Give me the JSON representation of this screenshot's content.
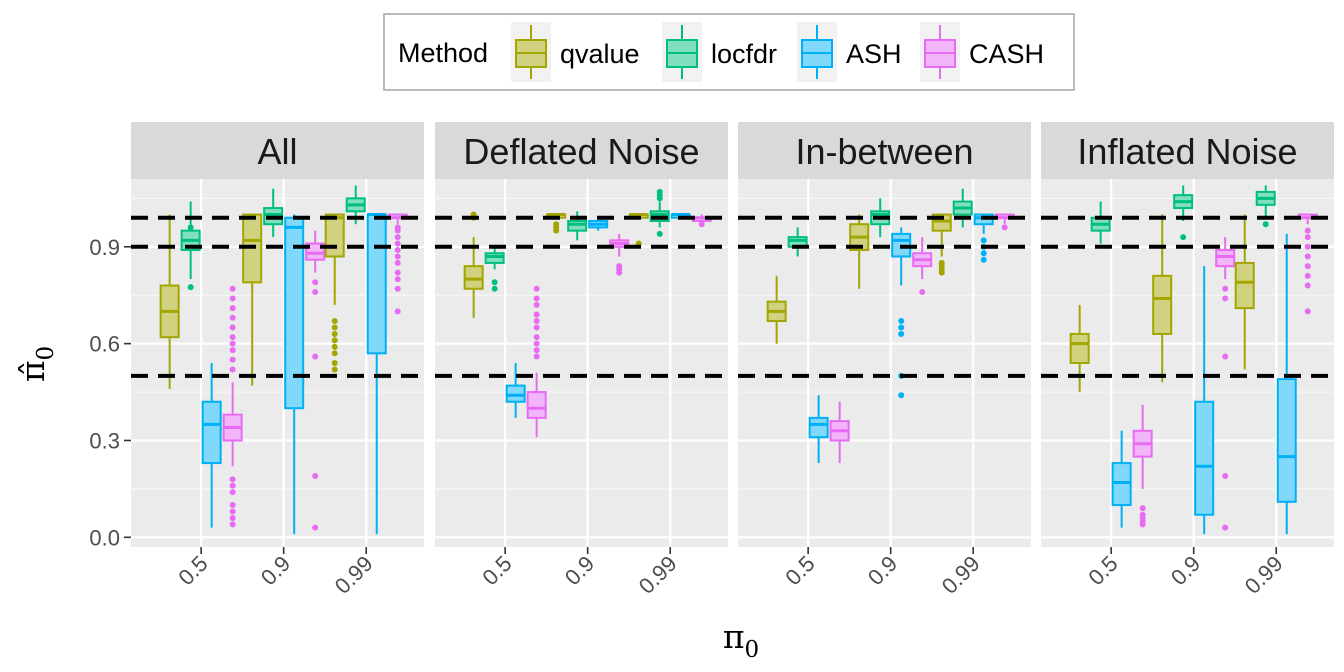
{
  "chart_data": {
    "type": "boxplot",
    "xlabel": "π0",
    "ylabel": "π̂0",
    "ylim": [
      -0.03,
      1.11
    ],
    "y_ticks": [
      "0.0",
      "0.3",
      "0.6",
      "0.9"
    ],
    "y_tick_values": [
      0.0,
      0.3,
      0.6,
      0.9
    ],
    "categories": [
      "0.5",
      "0.9",
      "0.99"
    ],
    "reference_lines": [
      0.5,
      0.9,
      0.99
    ],
    "legend": {
      "title": "Method",
      "position": "top"
    },
    "series": [
      {
        "name": "qvalue",
        "color": "#A3A500",
        "fill": "#D1D280"
      },
      {
        "name": "locfdr",
        "color": "#00BF7D",
        "fill": "#80DFBE"
      },
      {
        "name": "ASH",
        "color": "#00B0F6",
        "fill": "#80D8FB"
      },
      {
        "name": "CASH",
        "color": "#E76BF3",
        "fill": "#F3B5F9"
      }
    ],
    "panels": [
      {
        "title": "All",
        "boxes": [
          [
            {
              "q1": 0.62,
              "med": 0.7,
              "q3": 0.78,
              "lo": 0.46,
              "hi": 1.0,
              "out": []
            },
            {
              "q1": 0.89,
              "med": 0.92,
              "q3": 0.95,
              "lo": 0.8,
              "hi": 1.04,
              "out": [
                0.775,
                0.96
              ]
            },
            {
              "q1": 0.23,
              "med": 0.35,
              "q3": 0.42,
              "lo": 0.03,
              "hi": 0.54,
              "out": []
            },
            {
              "q1": 0.3,
              "med": 0.34,
              "q3": 0.38,
              "lo": 0.22,
              "hi": 0.48,
              "out": [
                0.04,
                0.06,
                0.08,
                0.1,
                0.14,
                0.16,
                0.18,
                0.52,
                0.55,
                0.58,
                0.6,
                0.62,
                0.65,
                0.68,
                0.71,
                0.74,
                0.77
              ]
            }
          ],
          [
            {
              "q1": 0.79,
              "med": 0.92,
              "q3": 1.0,
              "lo": 0.47,
              "hi": 1.0,
              "out": []
            },
            {
              "q1": 0.97,
              "med": 1.0,
              "q3": 1.02,
              "lo": 0.93,
              "hi": 1.08,
              "out": []
            },
            {
              "q1": 0.4,
              "med": 0.96,
              "q3": 0.99,
              "lo": 0.01,
              "hi": 1.0,
              "out": []
            },
            {
              "q1": 0.86,
              "med": 0.88,
              "q3": 0.91,
              "lo": 0.82,
              "hi": 0.95,
              "out": [
                0.03,
                0.19,
                0.56,
                0.76,
                0.79
              ]
            }
          ],
          [
            {
              "q1": 0.87,
              "med": 0.99,
              "q3": 1.0,
              "lo": 0.72,
              "hi": 1.0,
              "out": [
                0.52,
                0.54,
                0.57,
                0.59,
                0.61,
                0.63,
                0.65,
                0.67
              ]
            },
            {
              "q1": 1.01,
              "med": 1.03,
              "q3": 1.05,
              "lo": 0.97,
              "hi": 1.09,
              "out": []
            },
            {
              "q1": 0.57,
              "med": 1.0,
              "q3": 1.0,
              "lo": 0.01,
              "hi": 1.0,
              "out": []
            },
            {
              "q1": 0.99,
              "med": 0.99,
              "q3": 1.0,
              "lo": 0.97,
              "hi": 1.0,
              "out": [
                0.7,
                0.77,
                0.8,
                0.82,
                0.85,
                0.87,
                0.89,
                0.91,
                0.93,
                0.95,
                0.96
              ]
            }
          ]
        ]
      },
      {
        "title": "Deflated Noise",
        "boxes": [
          [
            {
              "q1": 0.77,
              "med": 0.8,
              "q3": 0.84,
              "lo": 0.68,
              "hi": 0.93,
              "out": [
                0.99,
                1.0
              ]
            },
            {
              "q1": 0.85,
              "med": 0.87,
              "q3": 0.88,
              "lo": 0.83,
              "hi": 0.9,
              "out": [
                0.77,
                0.79
              ]
            },
            {
              "q1": 0.42,
              "med": 0.44,
              "q3": 0.47,
              "lo": 0.37,
              "hi": 0.54,
              "out": []
            },
            {
              "q1": 0.37,
              "med": 0.4,
              "q3": 0.45,
              "lo": 0.31,
              "hi": 0.51,
              "out": [
                0.56,
                0.58,
                0.6,
                0.62,
                0.65,
                0.67,
                0.69,
                0.72,
                0.74,
                0.77
              ]
            }
          ],
          [
            {
              "q1": 0.99,
              "med": 1.0,
              "q3": 1.0,
              "lo": 0.99,
              "hi": 1.0,
              "out": [
                0.95,
                0.96,
                0.97
              ]
            },
            {
              "q1": 0.95,
              "med": 0.97,
              "q3": 0.98,
              "lo": 0.92,
              "hi": 1.01,
              "out": []
            },
            {
              "q1": 0.96,
              "med": 0.97,
              "q3": 0.98,
              "lo": 0.95,
              "hi": 0.98,
              "out": []
            },
            {
              "q1": 0.9,
              "med": 0.91,
              "q3": 0.92,
              "lo": 0.87,
              "hi": 0.94,
              "out": [
                0.82,
                0.83,
                0.84
              ]
            }
          ],
          [
            {
              "q1": 0.99,
              "med": 1.0,
              "q3": 1.0,
              "lo": 0.99,
              "hi": 1.0,
              "out": [
                0.91
              ]
            },
            {
              "q1": 0.98,
              "med": 1.0,
              "q3": 1.01,
              "lo": 0.96,
              "hi": 1.04,
              "out": [
                0.94,
                1.05,
                1.06,
                1.07
              ]
            },
            {
              "q1": 0.99,
              "med": 1.0,
              "q3": 1.0,
              "lo": 0.99,
              "hi": 1.0,
              "out": []
            },
            {
              "q1": 0.98,
              "med": 0.99,
              "q3": 0.99,
              "lo": 0.98,
              "hi": 1.0,
              "out": [
                0.97
              ]
            }
          ]
        ]
      },
      {
        "title": "In-between",
        "boxes": [
          [
            {
              "q1": 0.67,
              "med": 0.7,
              "q3": 0.73,
              "lo": 0.6,
              "hi": 0.81,
              "out": []
            },
            {
              "q1": 0.9,
              "med": 0.92,
              "q3": 0.93,
              "lo": 0.87,
              "hi": 0.96,
              "out": []
            },
            {
              "q1": 0.31,
              "med": 0.35,
              "q3": 0.37,
              "lo": 0.23,
              "hi": 0.44,
              "out": []
            },
            {
              "q1": 0.3,
              "med": 0.33,
              "q3": 0.36,
              "lo": 0.23,
              "hi": 0.42,
              "out": []
            }
          ],
          [
            {
              "q1": 0.89,
              "med": 0.93,
              "q3": 0.97,
              "lo": 0.77,
              "hi": 1.0,
              "out": []
            },
            {
              "q1": 0.97,
              "med": 1.0,
              "q3": 1.01,
              "lo": 0.93,
              "hi": 1.05,
              "out": []
            },
            {
              "q1": 0.87,
              "med": 0.92,
              "q3": 0.94,
              "lo": 0.78,
              "hi": 0.96,
              "out": [
                0.44,
                0.5,
                0.63,
                0.65,
                0.67
              ]
            },
            {
              "q1": 0.84,
              "med": 0.86,
              "q3": 0.88,
              "lo": 0.8,
              "hi": 0.93,
              "out": [
                0.76
              ]
            }
          ],
          [
            {
              "q1": 0.95,
              "med": 0.98,
              "q3": 1.0,
              "lo": 0.87,
              "hi": 1.0,
              "out": [
                0.82,
                0.83,
                0.84,
                0.85
              ]
            },
            {
              "q1": 1.0,
              "med": 1.02,
              "q3": 1.04,
              "lo": 0.96,
              "hi": 1.08,
              "out": []
            },
            {
              "q1": 0.97,
              "med": 0.99,
              "q3": 1.0,
              "lo": 0.94,
              "hi": 1.0,
              "out": [
                0.86,
                0.88,
                0.9,
                0.92
              ]
            },
            {
              "q1": 0.99,
              "med": 0.99,
              "q3": 1.0,
              "lo": 0.97,
              "hi": 1.0,
              "out": [
                0.96
              ]
            }
          ]
        ]
      },
      {
        "title": "Inflated Noise",
        "boxes": [
          [
            {
              "q1": 0.54,
              "med": 0.6,
              "q3": 0.63,
              "lo": 0.45,
              "hi": 0.72,
              "out": []
            },
            {
              "q1": 0.95,
              "med": 0.97,
              "q3": 0.99,
              "lo": 0.91,
              "hi": 1.04,
              "out": []
            },
            {
              "q1": 0.1,
              "med": 0.17,
              "q3": 0.23,
              "lo": 0.03,
              "hi": 0.33,
              "out": []
            },
            {
              "q1": 0.25,
              "med": 0.29,
              "q3": 0.33,
              "lo": 0.15,
              "hi": 0.41,
              "out": [
                0.04,
                0.05,
                0.06,
                0.07,
                0.09
              ]
            }
          ],
          [
            {
              "q1": 0.63,
              "med": 0.74,
              "q3": 0.81,
              "lo": 0.48,
              "hi": 1.0,
              "out": []
            },
            {
              "q1": 1.02,
              "med": 1.04,
              "q3": 1.06,
              "lo": 0.98,
              "hi": 1.09,
              "out": [
                0.93
              ]
            },
            {
              "q1": 0.07,
              "med": 0.22,
              "q3": 0.42,
              "lo": 0.01,
              "hi": 0.84,
              "out": []
            },
            {
              "q1": 0.84,
              "med": 0.87,
              "q3": 0.89,
              "lo": 0.8,
              "hi": 0.93,
              "out": [
                0.03,
                0.19,
                0.56,
                0.74,
                0.77
              ]
            }
          ],
          [
            {
              "q1": 0.71,
              "med": 0.79,
              "q3": 0.85,
              "lo": 0.52,
              "hi": 1.0,
              "out": []
            },
            {
              "q1": 1.03,
              "med": 1.05,
              "q3": 1.07,
              "lo": 0.99,
              "hi": 1.09,
              "out": [
                0.97
              ]
            },
            {
              "q1": 0.11,
              "med": 0.25,
              "q3": 0.49,
              "lo": 0.01,
              "hi": 0.94,
              "out": []
            },
            {
              "q1": 0.99,
              "med": 0.99,
              "q3": 1.0,
              "lo": 0.97,
              "hi": 1.0,
              "out": [
                0.7,
                0.78,
                0.81,
                0.84,
                0.87,
                0.9,
                0.93,
                0.95
              ]
            }
          ]
        ]
      }
    ]
  }
}
